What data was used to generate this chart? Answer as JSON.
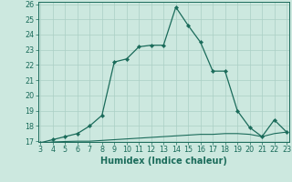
{
  "x": [
    3,
    4,
    5,
    6,
    7,
    8,
    9,
    10,
    11,
    12,
    13,
    14,
    15,
    16,
    17,
    18,
    19,
    20,
    21,
    22,
    23
  ],
  "y_main": [
    16.9,
    17.1,
    17.3,
    17.5,
    18.0,
    18.7,
    22.2,
    22.4,
    23.2,
    23.3,
    23.3,
    25.8,
    24.6,
    23.5,
    21.6,
    21.6,
    19.0,
    17.9,
    17.3,
    18.4,
    17.6
  ],
  "y_base": [
    16.85,
    16.95,
    16.98,
    17.0,
    17.0,
    17.05,
    17.1,
    17.15,
    17.2,
    17.25,
    17.3,
    17.35,
    17.4,
    17.45,
    17.45,
    17.5,
    17.5,
    17.45,
    17.3,
    17.5,
    17.6
  ],
  "xlim": [
    3,
    23
  ],
  "ylim": [
    17,
    26
  ],
  "xticks": [
    3,
    4,
    5,
    6,
    7,
    8,
    9,
    10,
    11,
    12,
    13,
    14,
    15,
    16,
    17,
    18,
    19,
    20,
    21,
    22,
    23
  ],
  "yticks": [
    17,
    18,
    19,
    20,
    21,
    22,
    23,
    24,
    25,
    26
  ],
  "xlabel": "Humidex (Indice chaleur)",
  "line_color": "#1a6b5a",
  "bg_color": "#cce8df",
  "grid_color": "#aacfc5",
  "tick_fontsize": 5.8,
  "label_fontsize": 7.0
}
